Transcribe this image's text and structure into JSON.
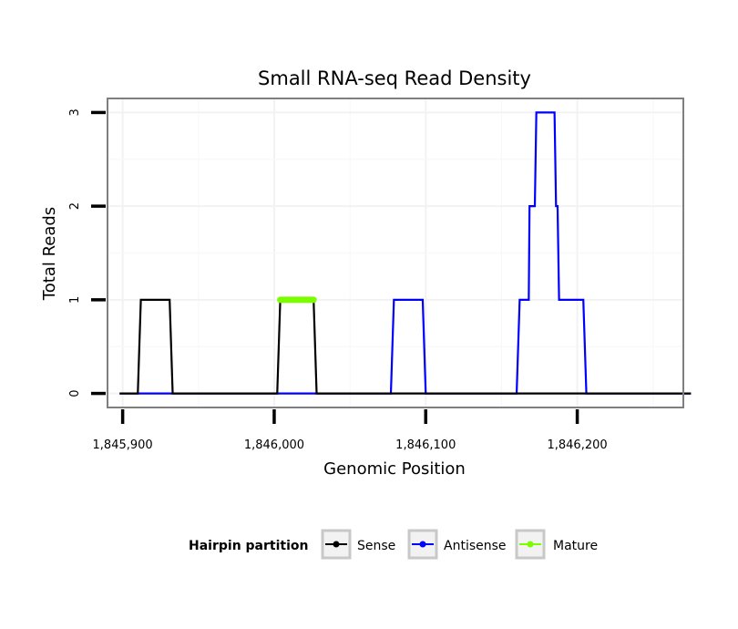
{
  "chart_data": {
    "type": "line",
    "title": "Small RNA-seq Read Density",
    "xlabel": "Genomic Position",
    "ylabel": "Total Reads",
    "xlim": [
      1845890,
      1846270
    ],
    "ylim": [
      -0.15,
      3.15
    ],
    "x_ticks": [
      1845900,
      1846000,
      1846100,
      1846200
    ],
    "x_tick_labels": [
      "1,845,900",
      "1,846,000",
      "1,846,100",
      "1,846,200"
    ],
    "y_ticks": [
      0,
      1,
      2,
      3
    ],
    "y_tick_labels": [
      "0",
      "1",
      "2",
      "3"
    ],
    "grid": true,
    "legend": {
      "title": "Hairpin partition",
      "position": "bottom",
      "entries": [
        "Sense",
        "Antisense",
        "Mature"
      ]
    },
    "series": [
      {
        "name": "Antisense",
        "color": "#0000ff",
        "points": [
          [
            1845898,
            0
          ],
          [
            1846077,
            0
          ],
          [
            1846079,
            1
          ],
          [
            1846098,
            1
          ],
          [
            1846100,
            0
          ],
          [
            1846160,
            0
          ],
          [
            1846162,
            1
          ],
          [
            1846168,
            1
          ],
          [
            1846168.5,
            2
          ],
          [
            1846172,
            2
          ],
          [
            1846173,
            3
          ],
          [
            1846185,
            3
          ],
          [
            1846186,
            2
          ],
          [
            1846187,
            2
          ],
          [
            1846188,
            1
          ],
          [
            1846204,
            1
          ],
          [
            1846206,
            0
          ],
          [
            1846275,
            0
          ]
        ]
      },
      {
        "name": "Sense",
        "color": "#000000",
        "points": [
          [
            1845898,
            0
          ],
          [
            1845910,
            0
          ],
          [
            1845912,
            1
          ],
          [
            1845931,
            1
          ],
          [
            1845933,
            0
          ],
          [
            1846002,
            0
          ],
          [
            1846004,
            1
          ],
          [
            1846026,
            1
          ],
          [
            1846028,
            0
          ],
          [
            1846275,
            0
          ]
        ]
      },
      {
        "name": "Mature",
        "color": "#7cfc00",
        "points": [
          [
            1846004,
            1
          ],
          [
            1846026,
            1
          ]
        ]
      }
    ]
  }
}
